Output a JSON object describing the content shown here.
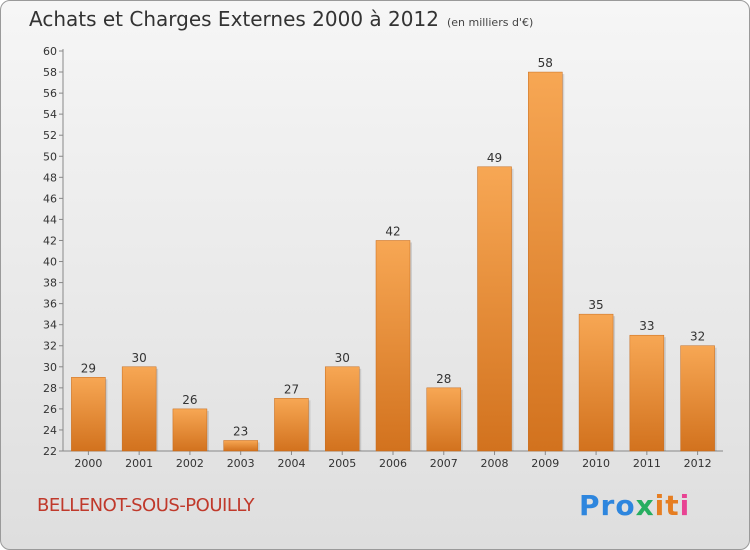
{
  "header": {
    "title": "Achats et Charges Externes 2000 à 2012",
    "unit": "(en milliers d'€)"
  },
  "footer": {
    "commune": "BELLENOT-SOUS-POUILLY",
    "logo_parts": [
      "Pro",
      "x",
      "it",
      "i"
    ]
  },
  "colors": {
    "bar_top": "#f7a754",
    "bar_bottom": "#d2721e",
    "commune_text": "#c0392b"
  },
  "chart_data": {
    "type": "bar",
    "title": "Achats et Charges Externes 2000 à 2012",
    "subtitle": "(en milliers d'€)",
    "xlabel": "",
    "ylabel": "",
    "categories": [
      "2000",
      "2001",
      "2002",
      "2003",
      "2004",
      "2005",
      "2006",
      "2007",
      "2008",
      "2009",
      "2010",
      "2011",
      "2012"
    ],
    "values": [
      29,
      30,
      26,
      23,
      27,
      30,
      42,
      28,
      49,
      58,
      35,
      33,
      32
    ],
    "ylim": [
      22,
      60
    ],
    "ytick_step": 2,
    "grid": false,
    "legend": "none",
    "data_labels": true
  }
}
